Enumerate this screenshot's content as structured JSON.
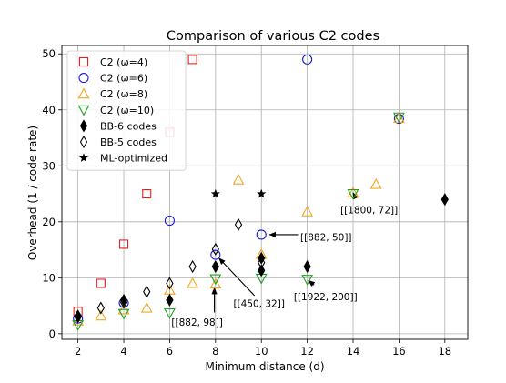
{
  "chart_data": {
    "type": "scatter",
    "title": "Comparison of various C2 codes",
    "xlabel": "Minimum distance (d)",
    "ylabel": "Overhead (1 / code rate)",
    "xlim": [
      1.3,
      19
    ],
    "ylim": [
      -1,
      51.5
    ],
    "xticks": [
      2,
      4,
      6,
      8,
      10,
      12,
      14,
      16,
      18
    ],
    "yticks": [
      0,
      10,
      20,
      30,
      40,
      50
    ],
    "grid": true,
    "legend_position": "top-left",
    "series": [
      {
        "name": "C2 (ω=4)",
        "marker": "square",
        "color": "#e8201a",
        "filled": false,
        "points": [
          [
            2,
            4
          ],
          [
            3,
            9
          ],
          [
            4,
            16
          ],
          [
            5,
            25
          ],
          [
            6,
            36
          ],
          [
            7,
            49
          ]
        ]
      },
      {
        "name": "C2 (ω=6)",
        "marker": "circle",
        "color": "#1a1ad6",
        "filled": false,
        "points": [
          [
            2,
            2.7
          ],
          [
            4,
            5.5
          ],
          [
            6,
            20.2
          ],
          [
            8,
            14.1
          ],
          [
            10,
            17.7
          ],
          [
            12,
            49
          ],
          [
            16,
            38.4
          ]
        ]
      },
      {
        "name": "C2 (ω=8)",
        "marker": "triangle-up",
        "color": "#f5a623",
        "filled": false,
        "points": [
          [
            2,
            2.3
          ],
          [
            3,
            3.2
          ],
          [
            4,
            4.3
          ],
          [
            5,
            4.6
          ],
          [
            6,
            7.8
          ],
          [
            7,
            9
          ],
          [
            8,
            8.9
          ],
          [
            9,
            27.5
          ],
          [
            10,
            14.2
          ],
          [
            12,
            21.8
          ],
          [
            14,
            25.2
          ],
          [
            15,
            26.7
          ],
          [
            16,
            38.5
          ]
        ]
      },
      {
        "name": "C2 (ω=10)",
        "marker": "triangle-down",
        "color": "#20a020",
        "filled": false,
        "points": [
          [
            2,
            1.6
          ],
          [
            4,
            3.6
          ],
          [
            6,
            3.7
          ],
          [
            8,
            9.8
          ],
          [
            10,
            9.9
          ],
          [
            12,
            9.7
          ],
          [
            14,
            25
          ],
          [
            16,
            38.7
          ]
        ]
      },
      {
        "name": "BB-6 codes",
        "marker": "diamond",
        "color": "#000000",
        "filled": true,
        "points": [
          [
            2,
            3.2
          ],
          [
            4,
            6
          ],
          [
            6,
            6
          ],
          [
            8,
            12
          ],
          [
            10,
            11.3
          ],
          [
            10,
            13.5
          ],
          [
            12,
            12
          ],
          [
            18,
            24
          ]
        ]
      },
      {
        "name": "BB-5 codes",
        "marker": "diamond",
        "color": "#000000",
        "filled": false,
        "points": [
          [
            2,
            3
          ],
          [
            3,
            4.6
          ],
          [
            4,
            5.6
          ],
          [
            5,
            7.5
          ],
          [
            6,
            9
          ],
          [
            7,
            12
          ],
          [
            8,
            15.1
          ],
          [
            9,
            19.5
          ],
          [
            10,
            12.7
          ]
        ]
      },
      {
        "name": "ML-optimized",
        "marker": "star",
        "color": "#000000",
        "filled": true,
        "points": [
          [
            8,
            25
          ],
          [
            10,
            25
          ]
        ]
      }
    ],
    "annotations": [
      {
        "text": "[[1800, 72]]",
        "text_at": [
          14.7,
          22.2
        ],
        "arrow_from": [
          14.1,
          24.3
        ],
        "arrow_to": [
          14,
          25.2
        ],
        "anchor": "middle"
      },
      {
        "text": "[[882, 50]]",
        "text_at": [
          11.7,
          17.3
        ],
        "arrow_from": [
          11.6,
          17.7
        ],
        "arrow_to": [
          10.35,
          17.7
        ],
        "anchor": "start"
      },
      {
        "text": "[[1922, 200]]",
        "text_at": [
          12.8,
          6.6
        ],
        "arrow_from": [
          12.3,
          8.7
        ],
        "arrow_to": [
          12.05,
          9.5
        ],
        "anchor": "middle"
      },
      {
        "text": "[[450, 32]]",
        "text_at": [
          9.9,
          5.4
        ],
        "arrow_from": [
          9.7,
          6.8
        ],
        "arrow_to": [
          8.15,
          13.5
        ],
        "anchor": "middle"
      },
      {
        "text": "[[882, 98]]",
        "text_at": [
          7.2,
          2.1
        ],
        "arrow_from": [
          7.95,
          3.8
        ],
        "arrow_to": [
          7.95,
          8.2
        ],
        "anchor": "middle"
      }
    ]
  }
}
